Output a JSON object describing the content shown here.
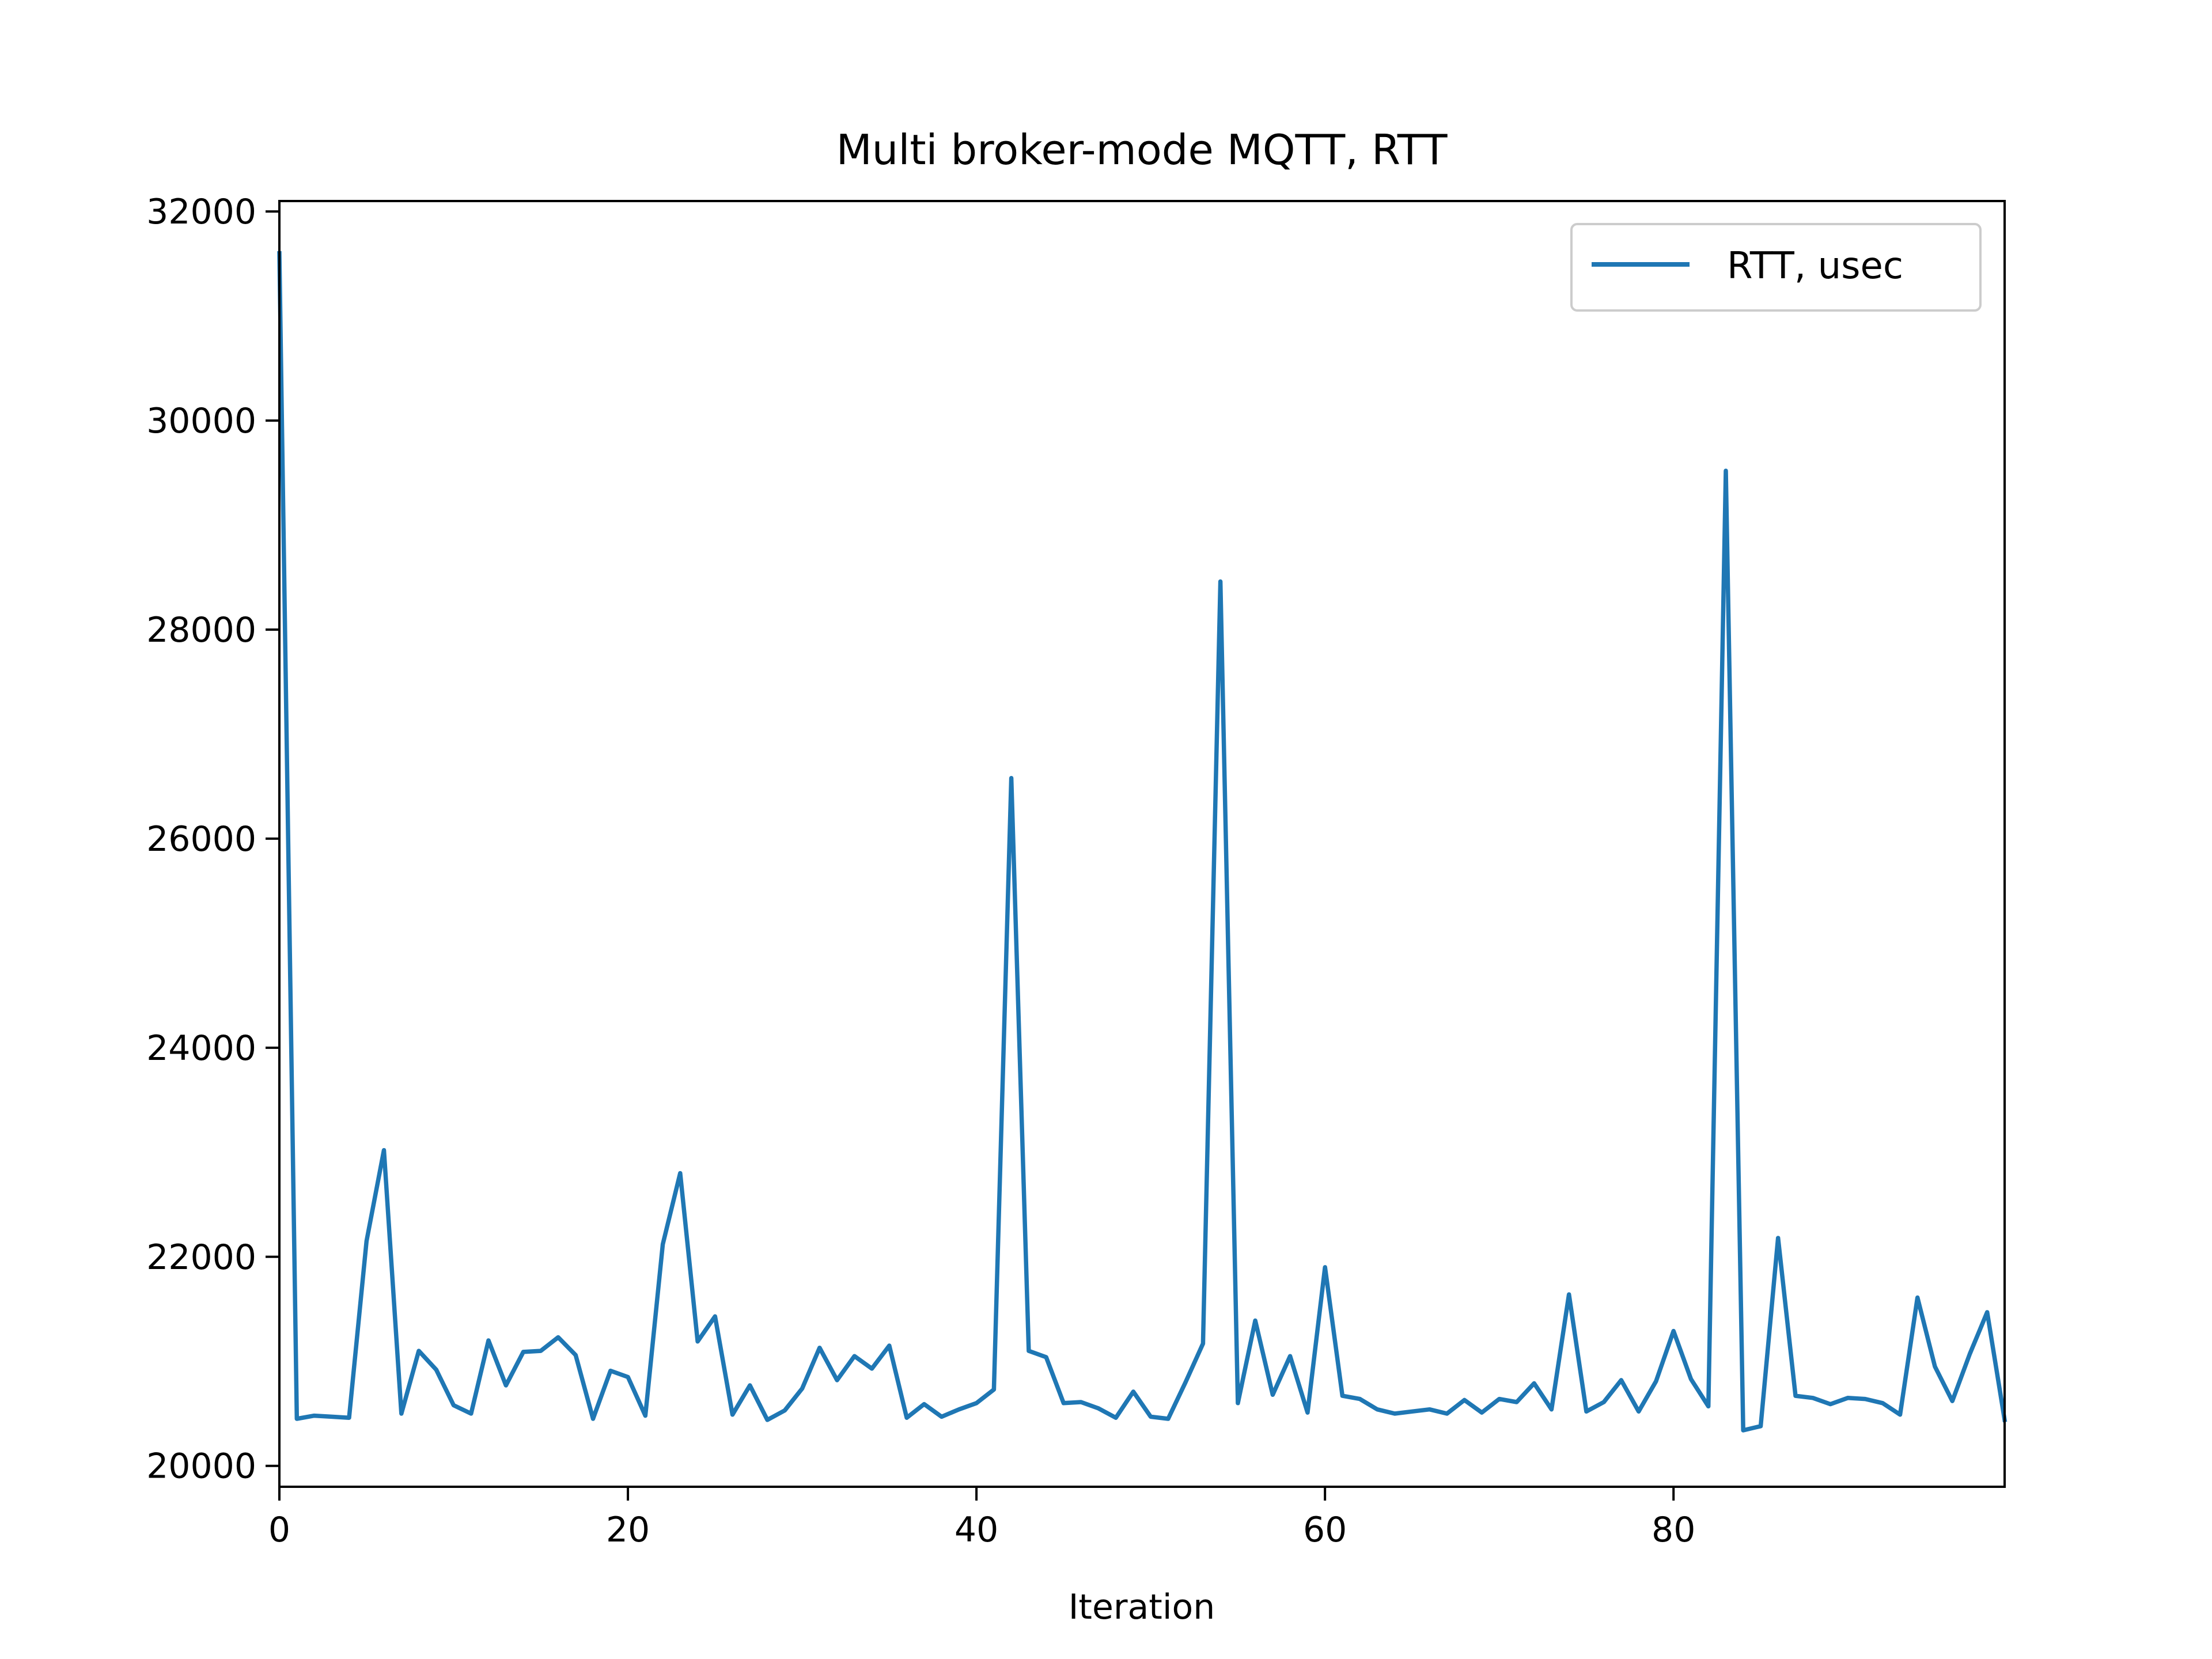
{
  "chart_data": {
    "type": "line",
    "title": "Multi broker-mode MQTT, RTT",
    "xlabel": "Iteration",
    "ylabel": "",
    "xlim": [
      0,
      99
    ],
    "ylim": [
      19800,
      32100
    ],
    "xticks": [
      0,
      20,
      40,
      60,
      80
    ],
    "xtick_labels": [
      "0",
      "20",
      "40",
      "60",
      "80"
    ],
    "yticks": [
      20000,
      22000,
      24000,
      26000,
      28000,
      30000,
      32000
    ],
    "ytick_labels": [
      "20000",
      "22000",
      "24000",
      "26000",
      "28000",
      "30000",
      "32000"
    ],
    "grid": false,
    "legend": {
      "position": "top-right",
      "entries": [
        "RTT, usec"
      ]
    },
    "series": [
      {
        "name": "RTT, usec",
        "color": "#1f77b4",
        "x": [
          0,
          1,
          2,
          3,
          4,
          5,
          6,
          7,
          8,
          9,
          10,
          11,
          12,
          13,
          14,
          15,
          16,
          17,
          18,
          19,
          20,
          21,
          22,
          23,
          24,
          25,
          26,
          27,
          28,
          29,
          30,
          31,
          32,
          33,
          34,
          35,
          36,
          37,
          38,
          39,
          40,
          41,
          42,
          43,
          44,
          45,
          46,
          47,
          48,
          49,
          50,
          51,
          52,
          53,
          54,
          55,
          56,
          57,
          58,
          59,
          60,
          61,
          62,
          63,
          64,
          65,
          66,
          67,
          68,
          69,
          70,
          71,
          72,
          73,
          74,
          75,
          76,
          77,
          78,
          79,
          80,
          81,
          82,
          83,
          84,
          85,
          86,
          87,
          88,
          89,
          90,
          91,
          92,
          93,
          94,
          95,
          96,
          97,
          98,
          99
        ],
        "values": [
          31600,
          20450,
          20480,
          20470,
          20460,
          22150,
          23020,
          20500,
          21100,
          20920,
          20580,
          20500,
          21200,
          20770,
          21090,
          21100,
          21230,
          21060,
          20450,
          20910,
          20850,
          20480,
          22120,
          22800,
          21190,
          21430,
          20490,
          20770,
          20440,
          20530,
          20740,
          21130,
          20820,
          21050,
          20930,
          21150,
          20460,
          20590,
          20470,
          20540,
          20600,
          20730,
          26580,
          21100,
          21040,
          20600,
          20610,
          20550,
          20460,
          20710,
          20470,
          20450,
          20800,
          21170,
          28460,
          20600,
          21390,
          20680,
          21050,
          20510,
          21900,
          20670,
          20640,
          20540,
          20500,
          20520,
          20540,
          20500,
          20630,
          20510,
          20640,
          20610,
          20790,
          20540,
          21640,
          20520,
          20610,
          20820,
          20520,
          20810,
          21290,
          20830,
          20570,
          29520,
          20340,
          20380,
          22180,
          20670,
          20650,
          20590,
          20650,
          20640,
          20600,
          20490,
          21610,
          20950,
          20620,
          21070,
          21470,
          20440
        ]
      }
    ]
  }
}
